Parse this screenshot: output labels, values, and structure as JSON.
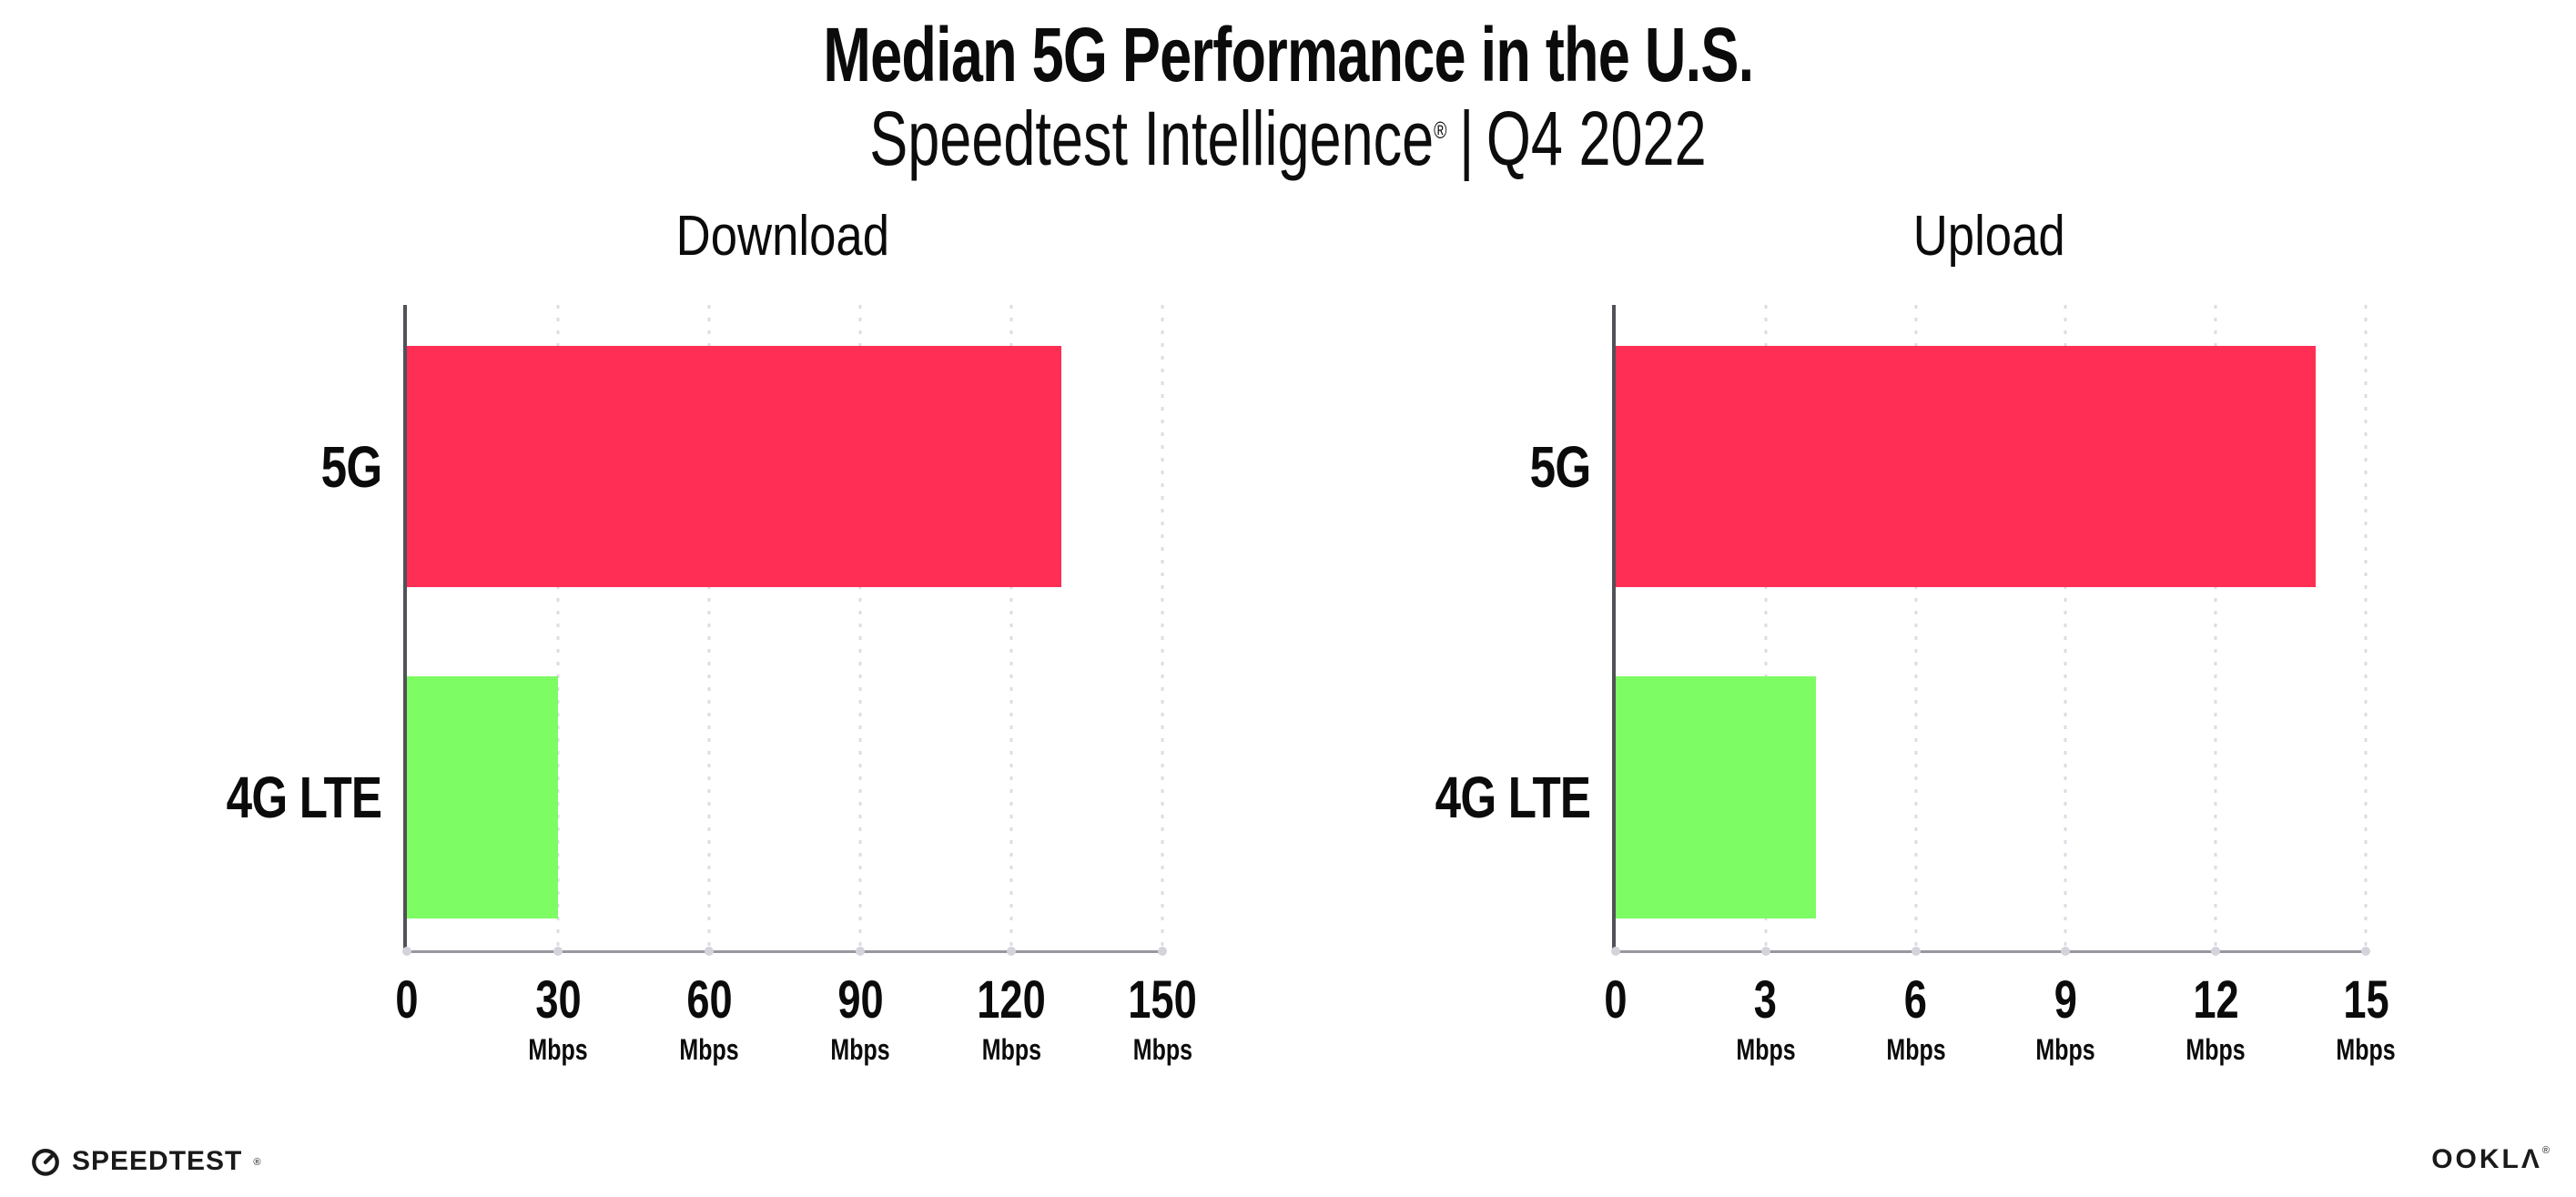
{
  "header": {
    "title": "Median 5G Performance in the U.S.",
    "subtitle": {
      "brand": "Speedtest Intelligence",
      "reg": "®",
      "separator": "|",
      "period": "Q4 2022"
    }
  },
  "chart_data": [
    {
      "type": "bar",
      "orientation": "horizontal",
      "title": "Download",
      "categories": [
        "5G",
        "4G LTE"
      ],
      "values": [
        130,
        30
      ],
      "unit": "Mbps",
      "xlim": [
        0,
        150
      ],
      "xticks": [
        0,
        30,
        60,
        90,
        120,
        150
      ],
      "bar_colors": [
        "#FF2E55",
        "#7DFC64"
      ],
      "grid": "vertical-dotted",
      "legend": "none"
    },
    {
      "type": "bar",
      "orientation": "horizontal",
      "title": "Upload",
      "categories": [
        "5G",
        "4G LTE"
      ],
      "values": [
        14,
        4
      ],
      "unit": "Mbps",
      "xlim": [
        0,
        15
      ],
      "xticks": [
        0,
        3,
        6,
        9,
        12,
        15
      ],
      "bar_colors": [
        "#FF2E55",
        "#7DFC64"
      ],
      "grid": "vertical-dotted",
      "legend": "none"
    }
  ],
  "footer": {
    "speedtest": "SPEEDTEST",
    "speedtest_reg": "®",
    "ookla": "OOKLΛ",
    "ookla_reg": "®"
  },
  "colors": {
    "bar_5g": "#FF2E55",
    "bar_4g_lte": "#7DFC64",
    "axis_line": "#515158",
    "baseline": "#97979f",
    "gridline_dot": "#dcdce6",
    "text": "#0b0b0b",
    "background": "#ffffff"
  }
}
